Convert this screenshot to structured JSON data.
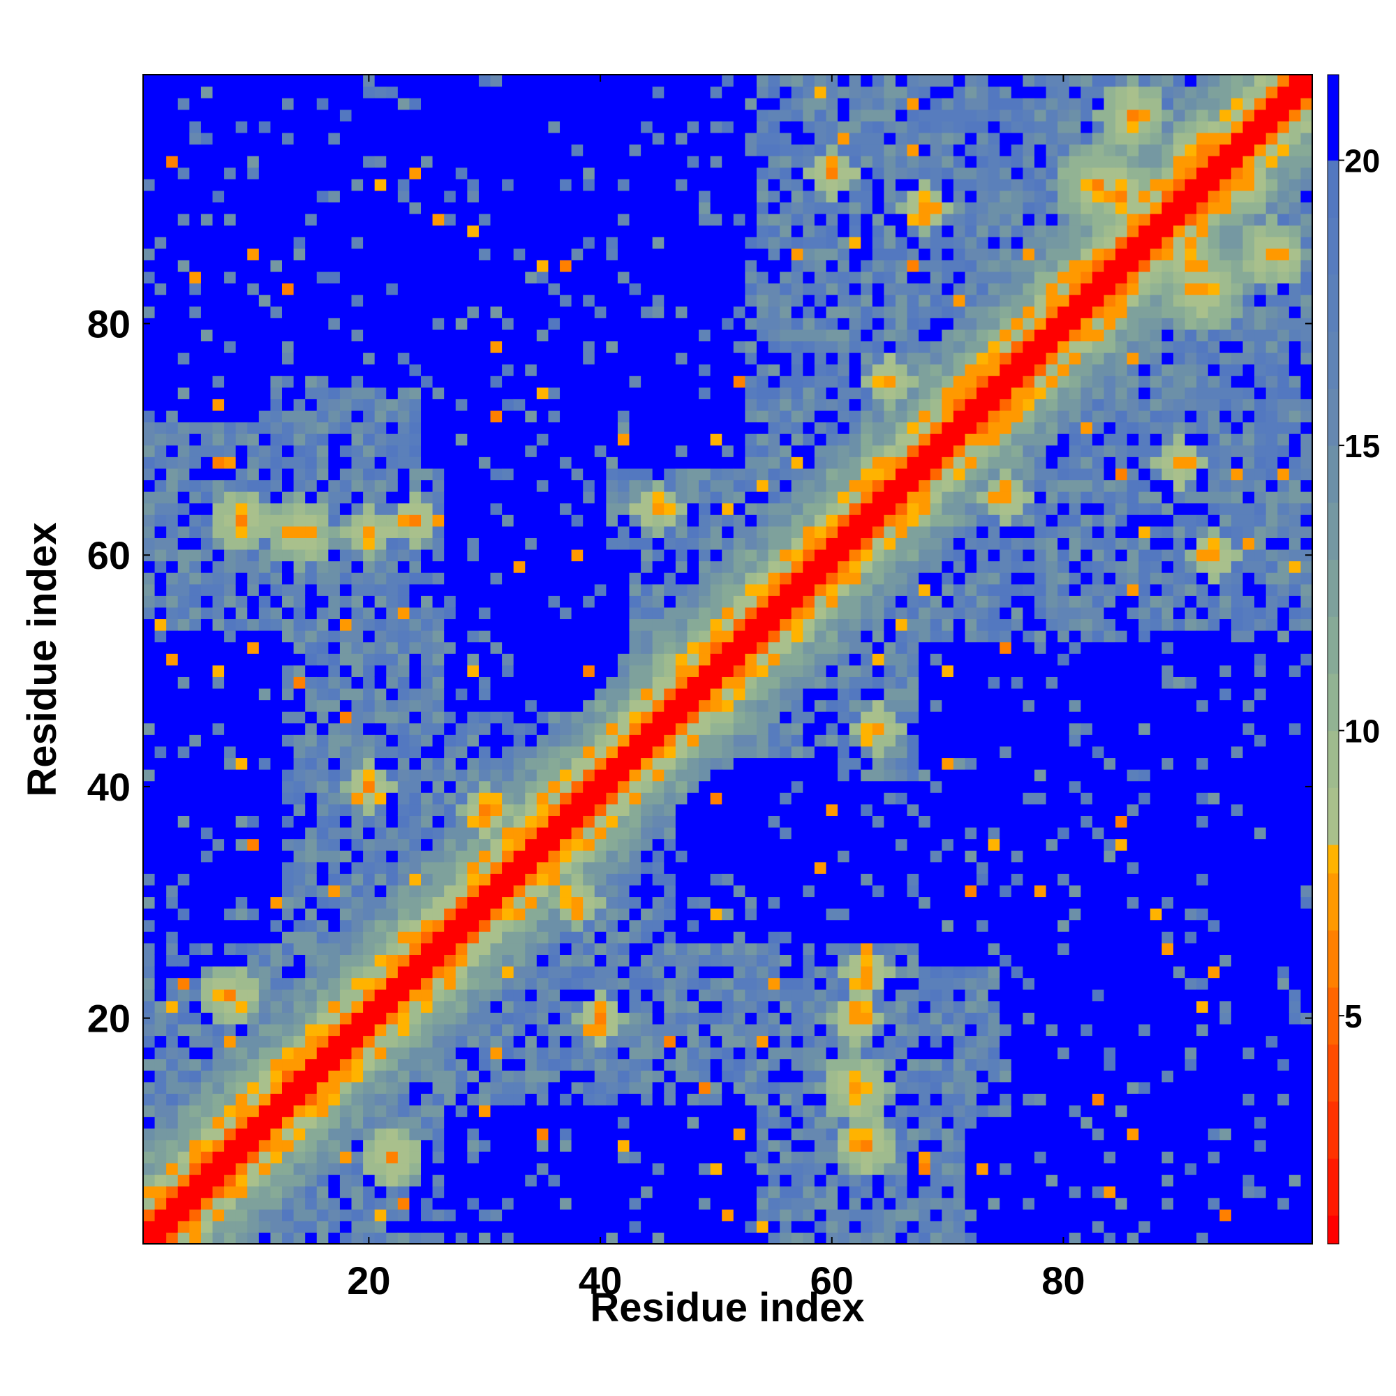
{
  "chart_data": {
    "type": "heatmap",
    "title": "",
    "xlabel": "Residue index",
    "ylabel": "Residue index",
    "n_residues": 101,
    "xlim": [
      1,
      101
    ],
    "ylim": [
      1,
      101
    ],
    "x_ticks": [
      20,
      40,
      60,
      80
    ],
    "y_ticks": [
      20,
      40,
      60,
      80
    ],
    "colorbar": {
      "range": [
        1,
        21.5
      ],
      "ticks": [
        5,
        10,
        15,
        20
      ],
      "bands": [
        {
          "max": 1.5,
          "color": "#ff0000"
        },
        {
          "max": 2.5,
          "color": "#ff1a00"
        },
        {
          "max": 3.5,
          "color": "#ff3300"
        },
        {
          "max": 4.5,
          "color": "#ff4d00"
        },
        {
          "max": 5.5,
          "color": "#ff6600"
        },
        {
          "max": 6.5,
          "color": "#ff8000"
        },
        {
          "max": 7.5,
          "color": "#ff9900"
        },
        {
          "max": 8.0,
          "color": "#ffb300"
        },
        {
          "max": 9.0,
          "color": "#a9c08c"
        },
        {
          "max": 10.0,
          "color": "#9fbb8e"
        },
        {
          "max": 11.0,
          "color": "#92b393"
        },
        {
          "max": 12.0,
          "color": "#87aa97"
        },
        {
          "max": 13.0,
          "color": "#7ea19c"
        },
        {
          "max": 14.0,
          "color": "#7598a2"
        },
        {
          "max": 15.0,
          "color": "#6c90a8"
        },
        {
          "max": 16.0,
          "color": "#6688b0"
        },
        {
          "max": 17.0,
          "color": "#6084b6"
        },
        {
          "max": 18.0,
          "color": "#5b80ba"
        },
        {
          "max": 19.0,
          "color": "#577cbe"
        },
        {
          "max": 20.0,
          "color": "#5378c0"
        },
        {
          "max": 21.5,
          "color": "#0000ff"
        }
      ]
    },
    "diagonal_width": 1,
    "contact_clusters": [
      {
        "i": 8,
        "j": 22,
        "r": 2.5
      },
      {
        "i": 30,
        "j": 38,
        "r": 2
      },
      {
        "i": 14,
        "j": 62,
        "r": 3
      },
      {
        "i": 24,
        "j": 63,
        "r": 2
      },
      {
        "i": 63,
        "j": 9,
        "r": 2.5
      },
      {
        "i": 62,
        "j": 20,
        "r": 2
      },
      {
        "i": 20,
        "j": 40,
        "r": 2
      },
      {
        "i": 45,
        "j": 64,
        "r": 2
      },
      {
        "i": 86,
        "j": 98,
        "r": 3
      },
      {
        "i": 92,
        "j": 83,
        "r": 4
      },
      {
        "i": 85,
        "j": 91,
        "r": 3
      },
      {
        "i": 95,
        "j": 92,
        "r": 3
      },
      {
        "i": 60,
        "j": 93,
        "r": 2
      },
      {
        "i": 90,
        "j": 68,
        "r": 2
      },
      {
        "i": 75,
        "j": 65,
        "r": 2
      }
    ],
    "far_regions": [
      {
        "x": [
          1,
          53
        ],
        "y": [
          88,
          101
        ]
      },
      {
        "x": [
          25,
          52
        ],
        "y": [
          68,
          88
        ]
      },
      {
        "x": [
          30,
          42
        ],
        "y": [
          48,
          60
        ]
      },
      {
        "x": [
          75,
          101
        ],
        "y": [
          1,
          50
        ]
      },
      {
        "x": [
          47,
          70
        ],
        "y": [
          27,
          40
        ]
      },
      {
        "x": [
          27,
          53
        ],
        "y": [
          1,
          12
        ]
      },
      {
        "x": [
          1,
          10
        ],
        "y": [
          72,
          101
        ]
      },
      {
        "x": [
          90,
          101
        ],
        "y": [
          1,
          20
        ]
      }
    ]
  }
}
